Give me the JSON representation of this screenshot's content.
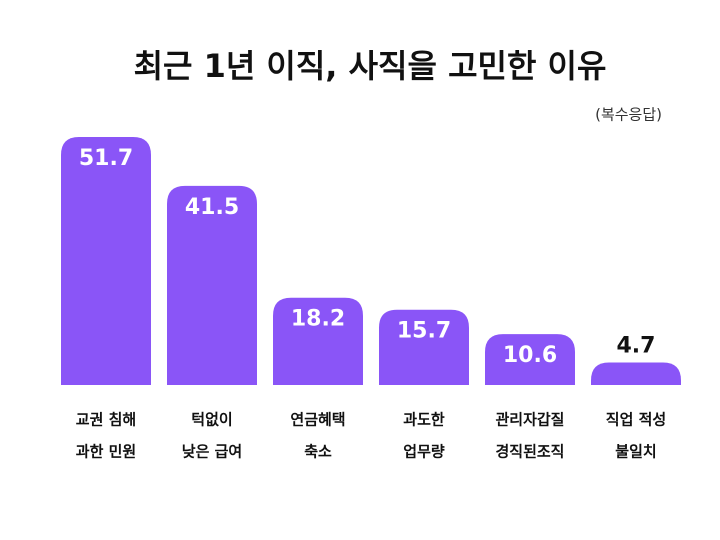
{
  "chart_data": {
    "type": "bar",
    "title": "최근 1년 이직, 사직을 고민한 이유",
    "subtitle": "(복수응답)",
    "categories": [
      [
        "교권 침해",
        "과한 민원"
      ],
      [
        "턱없이",
        "낮은 급여"
      ],
      [
        "연금혜택",
        "축소"
      ],
      [
        "과도한",
        "업무량"
      ],
      [
        "관리자갑질",
        "경직된조직"
      ],
      [
        "직업 적성",
        "불일치"
      ]
    ],
    "values": [
      51.7,
      41.5,
      18.2,
      15.7,
      10.6,
      4.7
    ],
    "color": "#8a55f7"
  }
}
